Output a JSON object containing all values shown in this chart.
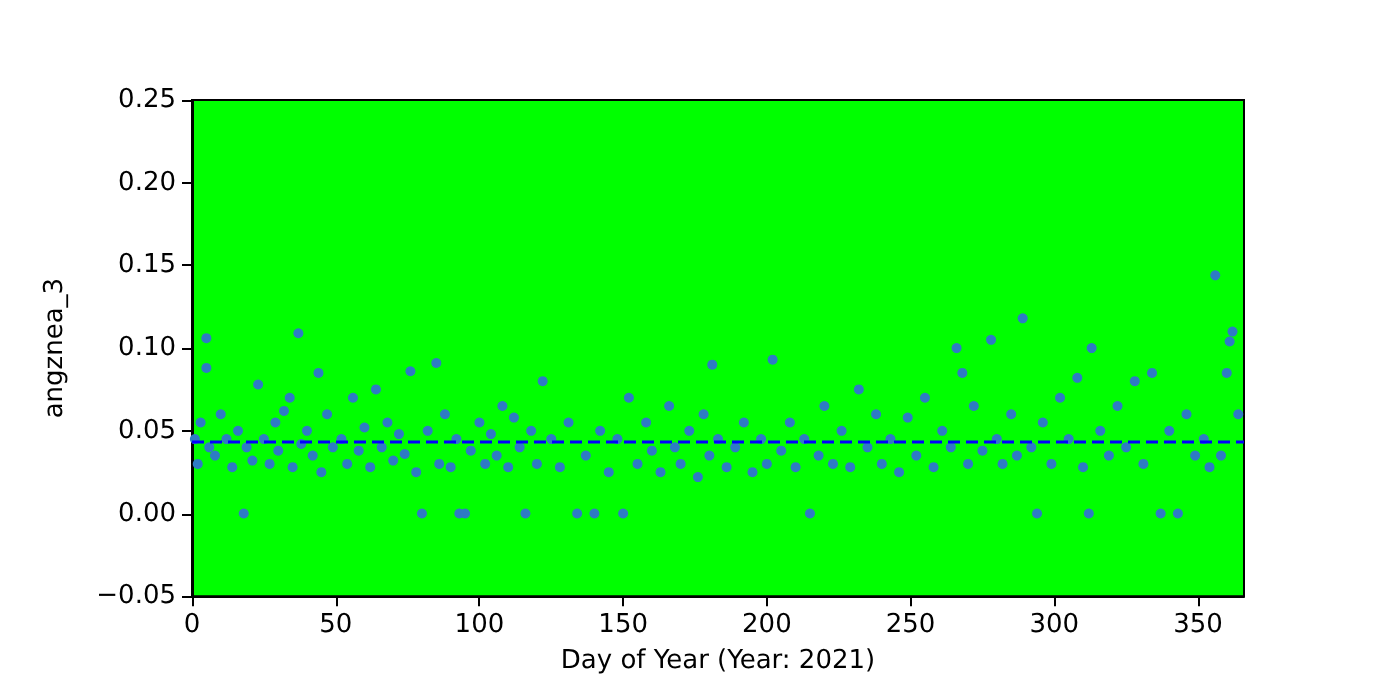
{
  "chart_data": {
    "type": "scatter",
    "xlabel": "Day of Year (Year: 2021)",
    "ylabel": "angznea_3",
    "xlim": [
      0,
      366
    ],
    "xticks": [
      0,
      50,
      100,
      150,
      200,
      250,
      300,
      350
    ],
    "ylim": [
      -0.05,
      0.25
    ],
    "yticks": [
      -0.05,
      {
        "value": 0,
        "label": "0.00"
      },
      0.05,
      {
        "value": 0.1,
        "label": "0.10"
      },
      0.15,
      {
        "value": 0.2,
        "label": "0.20"
      },
      0.25
    ],
    "marker": "circle",
    "ref_lines": [
      {
        "axis": "y",
        "value": 0.043,
        "color": "#0000ff",
        "line_style": "dashed"
      }
    ],
    "series": [
      {
        "color": "#2e7bc4",
        "x": [
          1,
          2,
          3,
          5,
          5,
          6,
          8,
          10,
          12,
          14,
          16,
          18,
          19,
          21,
          23,
          25,
          27,
          29,
          30,
          32,
          34,
          35,
          37,
          38,
          40,
          42,
          44,
          45,
          47,
          49,
          52,
          54,
          56,
          58,
          60,
          62,
          64,
          66,
          68,
          70,
          72,
          74,
          76,
          78,
          80,
          82,
          85,
          86,
          88,
          90,
          92,
          93,
          95,
          97,
          100,
          102,
          104,
          106,
          108,
          110,
          112,
          114,
          116,
          118,
          120,
          122,
          125,
          128,
          131,
          134,
          137,
          140,
          142,
          145,
          148,
          150,
          152,
          155,
          158,
          160,
          163,
          166,
          168,
          170,
          173,
          176,
          178,
          180,
          181,
          183,
          186,
          189,
          192,
          195,
          198,
          200,
          202,
          205,
          208,
          210,
          213,
          215,
          218,
          220,
          223,
          226,
          229,
          232,
          235,
          238,
          240,
          243,
          246,
          249,
          252,
          255,
          258,
          261,
          264,
          266,
          268,
          270,
          272,
          275,
          278,
          280,
          282,
          285,
          287,
          289,
          292,
          294,
          296,
          299,
          302,
          305,
          308,
          310,
          312,
          313,
          316,
          319,
          322,
          325,
          328,
          331,
          334,
          337,
          340,
          343,
          346,
          349,
          352,
          354,
          356,
          358,
          360,
          361,
          362,
          364
        ],
        "values": [
          0.045,
          0.03,
          0.055,
          0.106,
          0.088,
          0.04,
          0.035,
          0.06,
          0.045,
          0.028,
          0.05,
          0.0,
          0.04,
          0.032,
          0.078,
          0.045,
          0.03,
          0.055,
          0.038,
          0.062,
          0.07,
          0.028,
          0.109,
          0.042,
          0.05,
          0.035,
          0.085,
          0.025,
          0.06,
          0.04,
          0.045,
          0.03,
          0.07,
          0.038,
          0.052,
          0.028,
          0.075,
          0.04,
          0.055,
          0.032,
          0.048,
          0.036,
          0.086,
          0.025,
          0.0,
          0.05,
          0.091,
          0.03,
          0.06,
          0.028,
          0.045,
          0.0,
          0.0,
          0.038,
          0.055,
          0.03,
          0.048,
          0.035,
          0.065,
          0.028,
          0.058,
          0.04,
          0.0,
          0.05,
          0.03,
          0.08,
          0.045,
          0.028,
          0.055,
          0.0,
          0.035,
          0.0,
          0.05,
          0.025,
          0.045,
          0.0,
          0.07,
          0.03,
          0.055,
          0.038,
          0.025,
          0.065,
          0.04,
          0.03,
          0.05,
          0.022,
          0.06,
          0.035,
          0.09,
          0.045,
          0.028,
          0.04,
          0.055,
          0.025,
          0.045,
          0.03,
          0.093,
          0.038,
          0.055,
          0.028,
          0.045,
          0.0,
          0.035,
          0.065,
          0.03,
          0.05,
          0.028,
          0.075,
          0.04,
          0.06,
          0.03,
          0.045,
          0.025,
          0.058,
          0.035,
          0.07,
          0.028,
          0.05,
          0.04,
          0.1,
          0.085,
          0.03,
          0.065,
          0.038,
          0.105,
          0.045,
          0.03,
          0.06,
          0.035,
          0.118,
          0.04,
          0.0,
          0.055,
          0.03,
          0.07,
          0.045,
          0.082,
          0.028,
          0.0,
          0.1,
          0.05,
          0.035,
          0.065,
          0.04,
          0.08,
          0.03,
          0.085,
          0.0,
          0.05,
          0.0,
          0.06,
          0.035,
          0.045,
          0.028,
          0.144,
          0.035,
          0.085,
          0.104,
          0.11,
          0.06
        ]
      }
    ]
  }
}
